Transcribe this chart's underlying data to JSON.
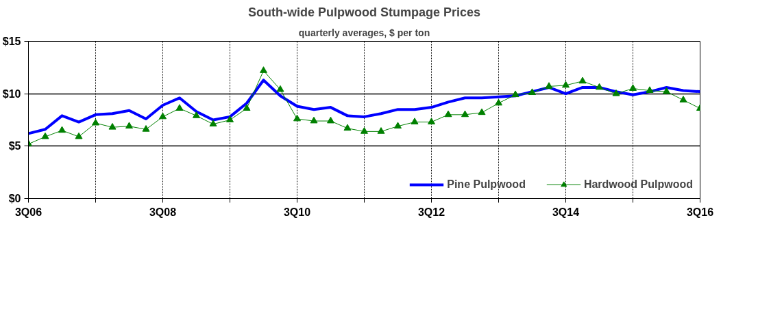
{
  "chart_data": {
    "type": "line",
    "title": "South-wide Pulpwood Stumpage Prices",
    "subtitle": "quarterly averages, $ per ton",
    "categories": [
      "3Q06",
      null,
      null,
      null,
      null,
      null,
      null,
      null,
      "3Q08",
      null,
      null,
      null,
      null,
      null,
      null,
      null,
      "3Q10",
      null,
      null,
      null,
      null,
      null,
      null,
      null,
      "3Q12",
      null,
      null,
      null,
      null,
      null,
      null,
      null,
      "3Q14",
      null,
      null,
      null,
      null,
      null,
      null,
      null,
      "3Q16"
    ],
    "series": [
      {
        "name": "Pine Pulpwood",
        "color": "#0000ff",
        "marker": "none",
        "values": [
          6.2,
          6.6,
          7.9,
          7.3,
          8.0,
          8.1,
          8.4,
          7.6,
          8.9,
          9.6,
          8.3,
          7.5,
          7.8,
          9.1,
          11.3,
          9.8,
          8.8,
          8.5,
          8.7,
          7.9,
          7.8,
          8.1,
          8.5,
          8.5,
          8.7,
          9.2,
          9.6,
          9.6,
          9.7,
          9.8,
          10.2,
          10.6,
          10.0,
          10.6,
          10.6,
          10.2,
          9.9,
          10.2,
          10.6,
          10.3,
          10.2
        ]
      },
      {
        "name": "Hardwood Pulpwood",
        "color": "#008000",
        "marker": "triangle",
        "values": [
          5.2,
          5.9,
          6.5,
          5.9,
          7.2,
          6.8,
          6.9,
          6.6,
          7.8,
          8.6,
          7.9,
          7.1,
          7.5,
          8.6,
          12.2,
          10.4,
          7.6,
          7.4,
          7.4,
          6.7,
          6.4,
          6.4,
          6.9,
          7.3,
          7.3,
          8.0,
          8.0,
          8.2,
          9.1,
          9.9,
          10.1,
          10.7,
          10.8,
          11.2,
          10.6,
          10.0,
          10.5,
          10.3,
          10.2,
          9.4,
          8.6
        ]
      }
    ],
    "ylim": [
      0,
      15
    ],
    "yticks": [
      {
        "value": 0,
        "label": "$0"
      },
      {
        "value": 5,
        "label": "$5"
      },
      {
        "value": 10,
        "label": "$10"
      },
      {
        "value": 15,
        "label": "$15"
      }
    ],
    "grid": true,
    "legend": "bottom right"
  }
}
